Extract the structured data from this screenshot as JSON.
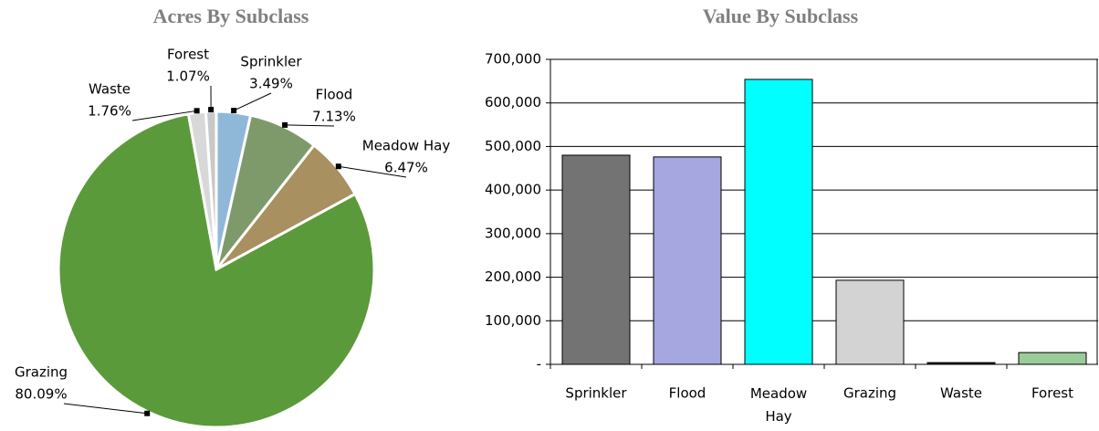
{
  "chart_data": [
    {
      "type": "pie",
      "title": "Acres By Subclass",
      "categories": [
        "Sprinkler",
        "Flood",
        "Meadow Hay",
        "Grazing",
        "Waste",
        "Forest"
      ],
      "values": [
        3.49,
        7.13,
        6.47,
        80.09,
        1.76,
        1.07
      ],
      "value_labels": [
        "3.49%",
        "7.13%",
        "6.47%",
        "80.09%",
        "1.76%",
        "1.07%"
      ],
      "colors": [
        "#8fb8d8",
        "#7f9a6a",
        "#a89060",
        "#5a9a3a",
        "#d8d8d8",
        "#c8c8c8"
      ]
    },
    {
      "type": "bar",
      "title": "Value By Subclass",
      "categories": [
        "Sprinkler",
        "Flood",
        "Meadow Hay",
        "Grazing",
        "Waste",
        "Forest"
      ],
      "values": [
        480000,
        476000,
        654000,
        193000,
        4000,
        27000
      ],
      "colors": [
        "#737373",
        "#a6a6e0",
        "#00ffff",
        "#d3d3d3",
        "#1a1a1a",
        "#99cc99"
      ],
      "ylim": [
        0,
        700000
      ],
      "yticks": [
        {
          "value": 0,
          "label": "-"
        },
        {
          "value": 100000,
          "label": "100,000"
        },
        {
          "value": 200000,
          "label": "200,000"
        },
        {
          "value": 300000,
          "label": "300,000"
        },
        {
          "value": 400000,
          "label": "400,000"
        },
        {
          "value": 500000,
          "label": "500,000"
        },
        {
          "value": 600000,
          "label": "600,000"
        },
        {
          "value": 700000,
          "label": "700,000"
        }
      ],
      "grid": true
    }
  ]
}
